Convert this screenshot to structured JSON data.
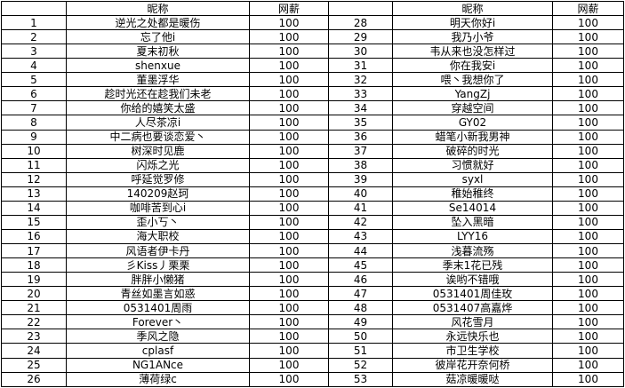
{
  "table": {
    "headers": {
      "num": "",
      "nickname": "昵称",
      "salary": "网薪"
    },
    "left_rows": [
      {
        "num": "1",
        "name": "逆光之处都是暖伤",
        "salary": "100"
      },
      {
        "num": "2",
        "name": "忘了他i",
        "salary": "100"
      },
      {
        "num": "3",
        "name": "夏末初秋",
        "salary": "100"
      },
      {
        "num": "4",
        "name": "shenxue",
        "salary": "100"
      },
      {
        "num": "5",
        "name": "董墨浮华",
        "salary": "100"
      },
      {
        "num": "6",
        "name": "趁时光还在趁我们未老",
        "salary": "100"
      },
      {
        "num": "7",
        "name": "你给的嬉笑太盛",
        "salary": "100"
      },
      {
        "num": "8",
        "name": "人尽茶凉i",
        "salary": "100"
      },
      {
        "num": "9",
        "name": "中二病也要谈恋爱丶",
        "salary": "100"
      },
      {
        "num": "10",
        "name": "树深时见鹿",
        "salary": "100"
      },
      {
        "num": "11",
        "name": "闪烁之光",
        "salary": "100"
      },
      {
        "num": "12",
        "name": "呼延觉罗修",
        "salary": "100"
      },
      {
        "num": "13",
        "name": "140209赵珂",
        "salary": "100"
      },
      {
        "num": "14",
        "name": "咖啡苦到心i",
        "salary": "100"
      },
      {
        "num": "15",
        "name": "歪小丂丶",
        "salary": "100"
      },
      {
        "num": "16",
        "name": "海大职校",
        "salary": "100"
      },
      {
        "num": "17",
        "name": "风语者伊卡丹",
        "salary": "100"
      },
      {
        "num": "18",
        "name": "彡Kiss丿栗栗",
        "salary": "100"
      },
      {
        "num": "19",
        "name": "胖胖小懒猪",
        "salary": "100"
      },
      {
        "num": "20",
        "name": "青丝如墨言如惑",
        "salary": "100"
      },
      {
        "num": "21",
        "name": "0531401周雨",
        "salary": "100"
      },
      {
        "num": "22",
        "name": "Forever丶",
        "salary": "100"
      },
      {
        "num": "23",
        "name": "季风之隐",
        "salary": "100"
      },
      {
        "num": "24",
        "name": "cplasf",
        "salary": "100"
      },
      {
        "num": "25",
        "name": "NG1ANce",
        "salary": "100"
      },
      {
        "num": "26",
        "name": "薄荷绿c",
        "salary": "100"
      }
    ],
    "right_rows": [
      {
        "num": "28",
        "name": "明天你好i",
        "salary": "100"
      },
      {
        "num": "29",
        "name": "我乃小爷",
        "salary": "100"
      },
      {
        "num": "30",
        "name": "韦从来也没怎样过",
        "salary": "100"
      },
      {
        "num": "31",
        "name": "你在我安i",
        "salary": "100"
      },
      {
        "num": "32",
        "name": "喂丶我想你了",
        "salary": "100"
      },
      {
        "num": "33",
        "name": "YangZj",
        "salary": "100"
      },
      {
        "num": "34",
        "name": "穿越空间",
        "salary": "100"
      },
      {
        "num": "35",
        "name": "GY02",
        "salary": "100"
      },
      {
        "num": "36",
        "name": "蜡笔小新我男神",
        "salary": "100"
      },
      {
        "num": "37",
        "name": "破碎的时光",
        "salary": "100"
      },
      {
        "num": "38",
        "name": "习惯就好",
        "salary": "100"
      },
      {
        "num": "39",
        "name": "syxl",
        "salary": "100"
      },
      {
        "num": "40",
        "name": "稚始稚终",
        "salary": "100"
      },
      {
        "num": "41",
        "name": "Se14014",
        "salary": "100"
      },
      {
        "num": "42",
        "name": "坠入黑暗",
        "salary": "100"
      },
      {
        "num": "43",
        "name": "LYY16",
        "salary": "100"
      },
      {
        "num": "44",
        "name": "浅暮流殇",
        "salary": "100"
      },
      {
        "num": "45",
        "name": "季末1花已残",
        "salary": "100"
      },
      {
        "num": "46",
        "name": "诶哟不错哦",
        "salary": "100"
      },
      {
        "num": "47",
        "name": "0531401周佳玫",
        "salary": "100"
      },
      {
        "num": "48",
        "name": "0531407高嘉烨",
        "salary": "100"
      },
      {
        "num": "49",
        "name": "风花雪月",
        "salary": "100"
      },
      {
        "num": "50",
        "name": "永远快乐也",
        "salary": "100"
      },
      {
        "num": "51",
        "name": "市卫生学校",
        "salary": "100"
      },
      {
        "num": "52",
        "name": "彼岸花开奈何桥",
        "salary": "100"
      },
      {
        "num": "53",
        "name": "菇凉暖暖哒",
        "salary": "100"
      }
    ]
  }
}
